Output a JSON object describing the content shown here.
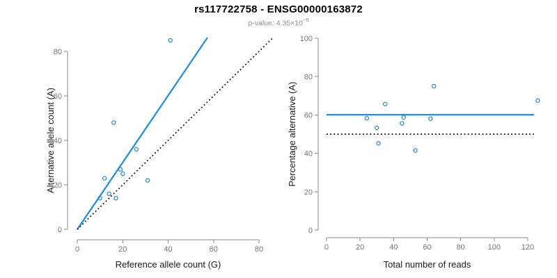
{
  "header": {
    "title": "rs117722758 - ENSG00000163872",
    "subtitle_prefix": "p-value: 4.35×10",
    "subtitle_exponent": "−6"
  },
  "colors": {
    "axis": "#8a8a8a",
    "tick_label": "#757575",
    "text": "#1a1a1a",
    "point": "#1e86db",
    "accent_blue": "#1e8fe8",
    "dotted_black": "#000000",
    "subtitle_gray": "#8c8c8c",
    "background": "#ffffff"
  },
  "chart_data": [
    {
      "type": "scatter",
      "panel": "left",
      "xlabel": "Reference allele count (G)",
      "ylabel": "Alternative allele count (A)",
      "xticks": [
        0,
        20,
        40,
        60,
        80
      ],
      "yticks": [
        0,
        20,
        40,
        60,
        80
      ],
      "xlim": [
        0,
        85.8
      ],
      "ylim": [
        0,
        86.2
      ],
      "grid": false,
      "legend": false,
      "points": [
        [
          41,
          85
        ],
        [
          16,
          48
        ],
        [
          26,
          36
        ],
        [
          19,
          27
        ],
        [
          20,
          25
        ],
        [
          12,
          23
        ],
        [
          31,
          22
        ],
        [
          14,
          16
        ],
        [
          10,
          14
        ],
        [
          17,
          14
        ]
      ],
      "lines": [
        {
          "name": "fit-line",
          "kind": "segment",
          "x1": 0,
          "y1": 0,
          "x2": 57.3,
          "y2": 86.2,
          "style": "solid",
          "color_key": "accent_blue"
        },
        {
          "name": "identity-line",
          "kind": "segment",
          "x1": 0,
          "y1": 0,
          "x2": 85.8,
          "y2": 85.8,
          "style": "dotted",
          "color_key": "dotted_black"
        }
      ]
    },
    {
      "type": "scatter",
      "panel": "right",
      "xlabel": "Total number of reads",
      "ylabel": "Percentage alternative (A)",
      "xticks": [
        0,
        20,
        40,
        60,
        80,
        100,
        120
      ],
      "yticks": [
        0,
        20,
        40,
        60,
        80,
        100
      ],
      "xlim": [
        0,
        128
      ],
      "ylim": [
        0,
        100
      ],
      "grid": false,
      "legend": false,
      "points": [
        [
          126,
          67.5
        ],
        [
          64,
          75
        ],
        [
          62,
          58.1
        ],
        [
          46,
          58.7
        ],
        [
          45,
          55.6
        ],
        [
          35,
          65.7
        ],
        [
          53,
          41.5
        ],
        [
          30,
          53.3
        ],
        [
          24,
          58.3
        ],
        [
          31,
          45.2
        ]
      ],
      "lines": [
        {
          "name": "mean-percentage-line",
          "kind": "hline",
          "y": 60.1,
          "x1": 0,
          "x2": 123.7,
          "style": "solid",
          "color_key": "accent_blue"
        },
        {
          "name": "fifty-percent-line",
          "kind": "hline",
          "y": 50,
          "x1": 0,
          "x2": 123.7,
          "style": "dotted",
          "color_key": "dotted_black"
        }
      ]
    }
  ]
}
